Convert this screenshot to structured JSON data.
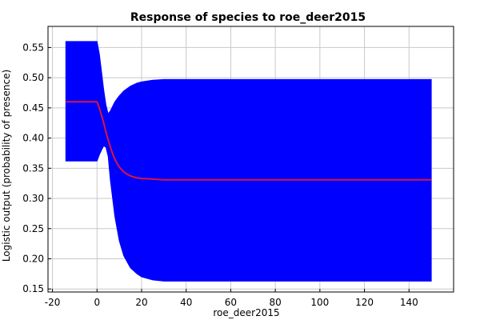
{
  "chart_data": {
    "type": "area",
    "title": "Response of species to roe_deer2015",
    "xlabel": "roe_deer2015",
    "ylabel": "Logistic output (probability of presence)",
    "xlim": [
      -22,
      160
    ],
    "ylim": [
      0.145,
      0.585
    ],
    "x_ticks": [
      -20,
      0,
      20,
      40,
      60,
      80,
      100,
      120,
      140
    ],
    "y_ticks": [
      0.15,
      0.2,
      0.25,
      0.3,
      0.35,
      0.4,
      0.45,
      0.5,
      0.55
    ],
    "grid": true,
    "series": [
      {
        "role": "band",
        "color": "#0000ff",
        "x": [
          -14,
          0,
          1,
          2,
          3,
          4,
          5,
          6,
          8,
          10,
          12,
          15,
          18,
          20,
          25,
          30,
          40,
          60,
          80,
          100,
          120,
          140,
          150
        ],
        "upper": [
          0.56,
          0.56,
          0.54,
          0.51,
          0.48,
          0.455,
          0.44,
          0.445,
          0.46,
          0.47,
          0.478,
          0.486,
          0.491,
          0.493,
          0.496,
          0.497,
          0.497,
          0.497,
          0.497,
          0.497,
          0.497,
          0.497,
          0.497
        ],
        "lower": [
          0.362,
          0.362,
          0.372,
          0.38,
          0.387,
          0.385,
          0.37,
          0.33,
          0.27,
          0.23,
          0.205,
          0.185,
          0.175,
          0.17,
          0.165,
          0.163,
          0.163,
          0.163,
          0.163,
          0.163,
          0.163,
          0.163,
          0.163
        ]
      },
      {
        "role": "line",
        "color": "#dc143c",
        "x": [
          -14,
          0,
          1,
          2,
          3,
          4,
          5,
          6,
          7,
          8,
          9,
          10,
          12,
          14,
          16,
          18,
          20,
          25,
          30,
          40,
          60,
          80,
          100,
          120,
          140,
          150
        ],
        "y": [
          0.46,
          0.46,
          0.45,
          0.438,
          0.425,
          0.41,
          0.397,
          0.385,
          0.374,
          0.365,
          0.358,
          0.352,
          0.344,
          0.339,
          0.336,
          0.334,
          0.333,
          0.332,
          0.331,
          0.331,
          0.331,
          0.331,
          0.331,
          0.331,
          0.331,
          0.331
        ]
      }
    ]
  }
}
